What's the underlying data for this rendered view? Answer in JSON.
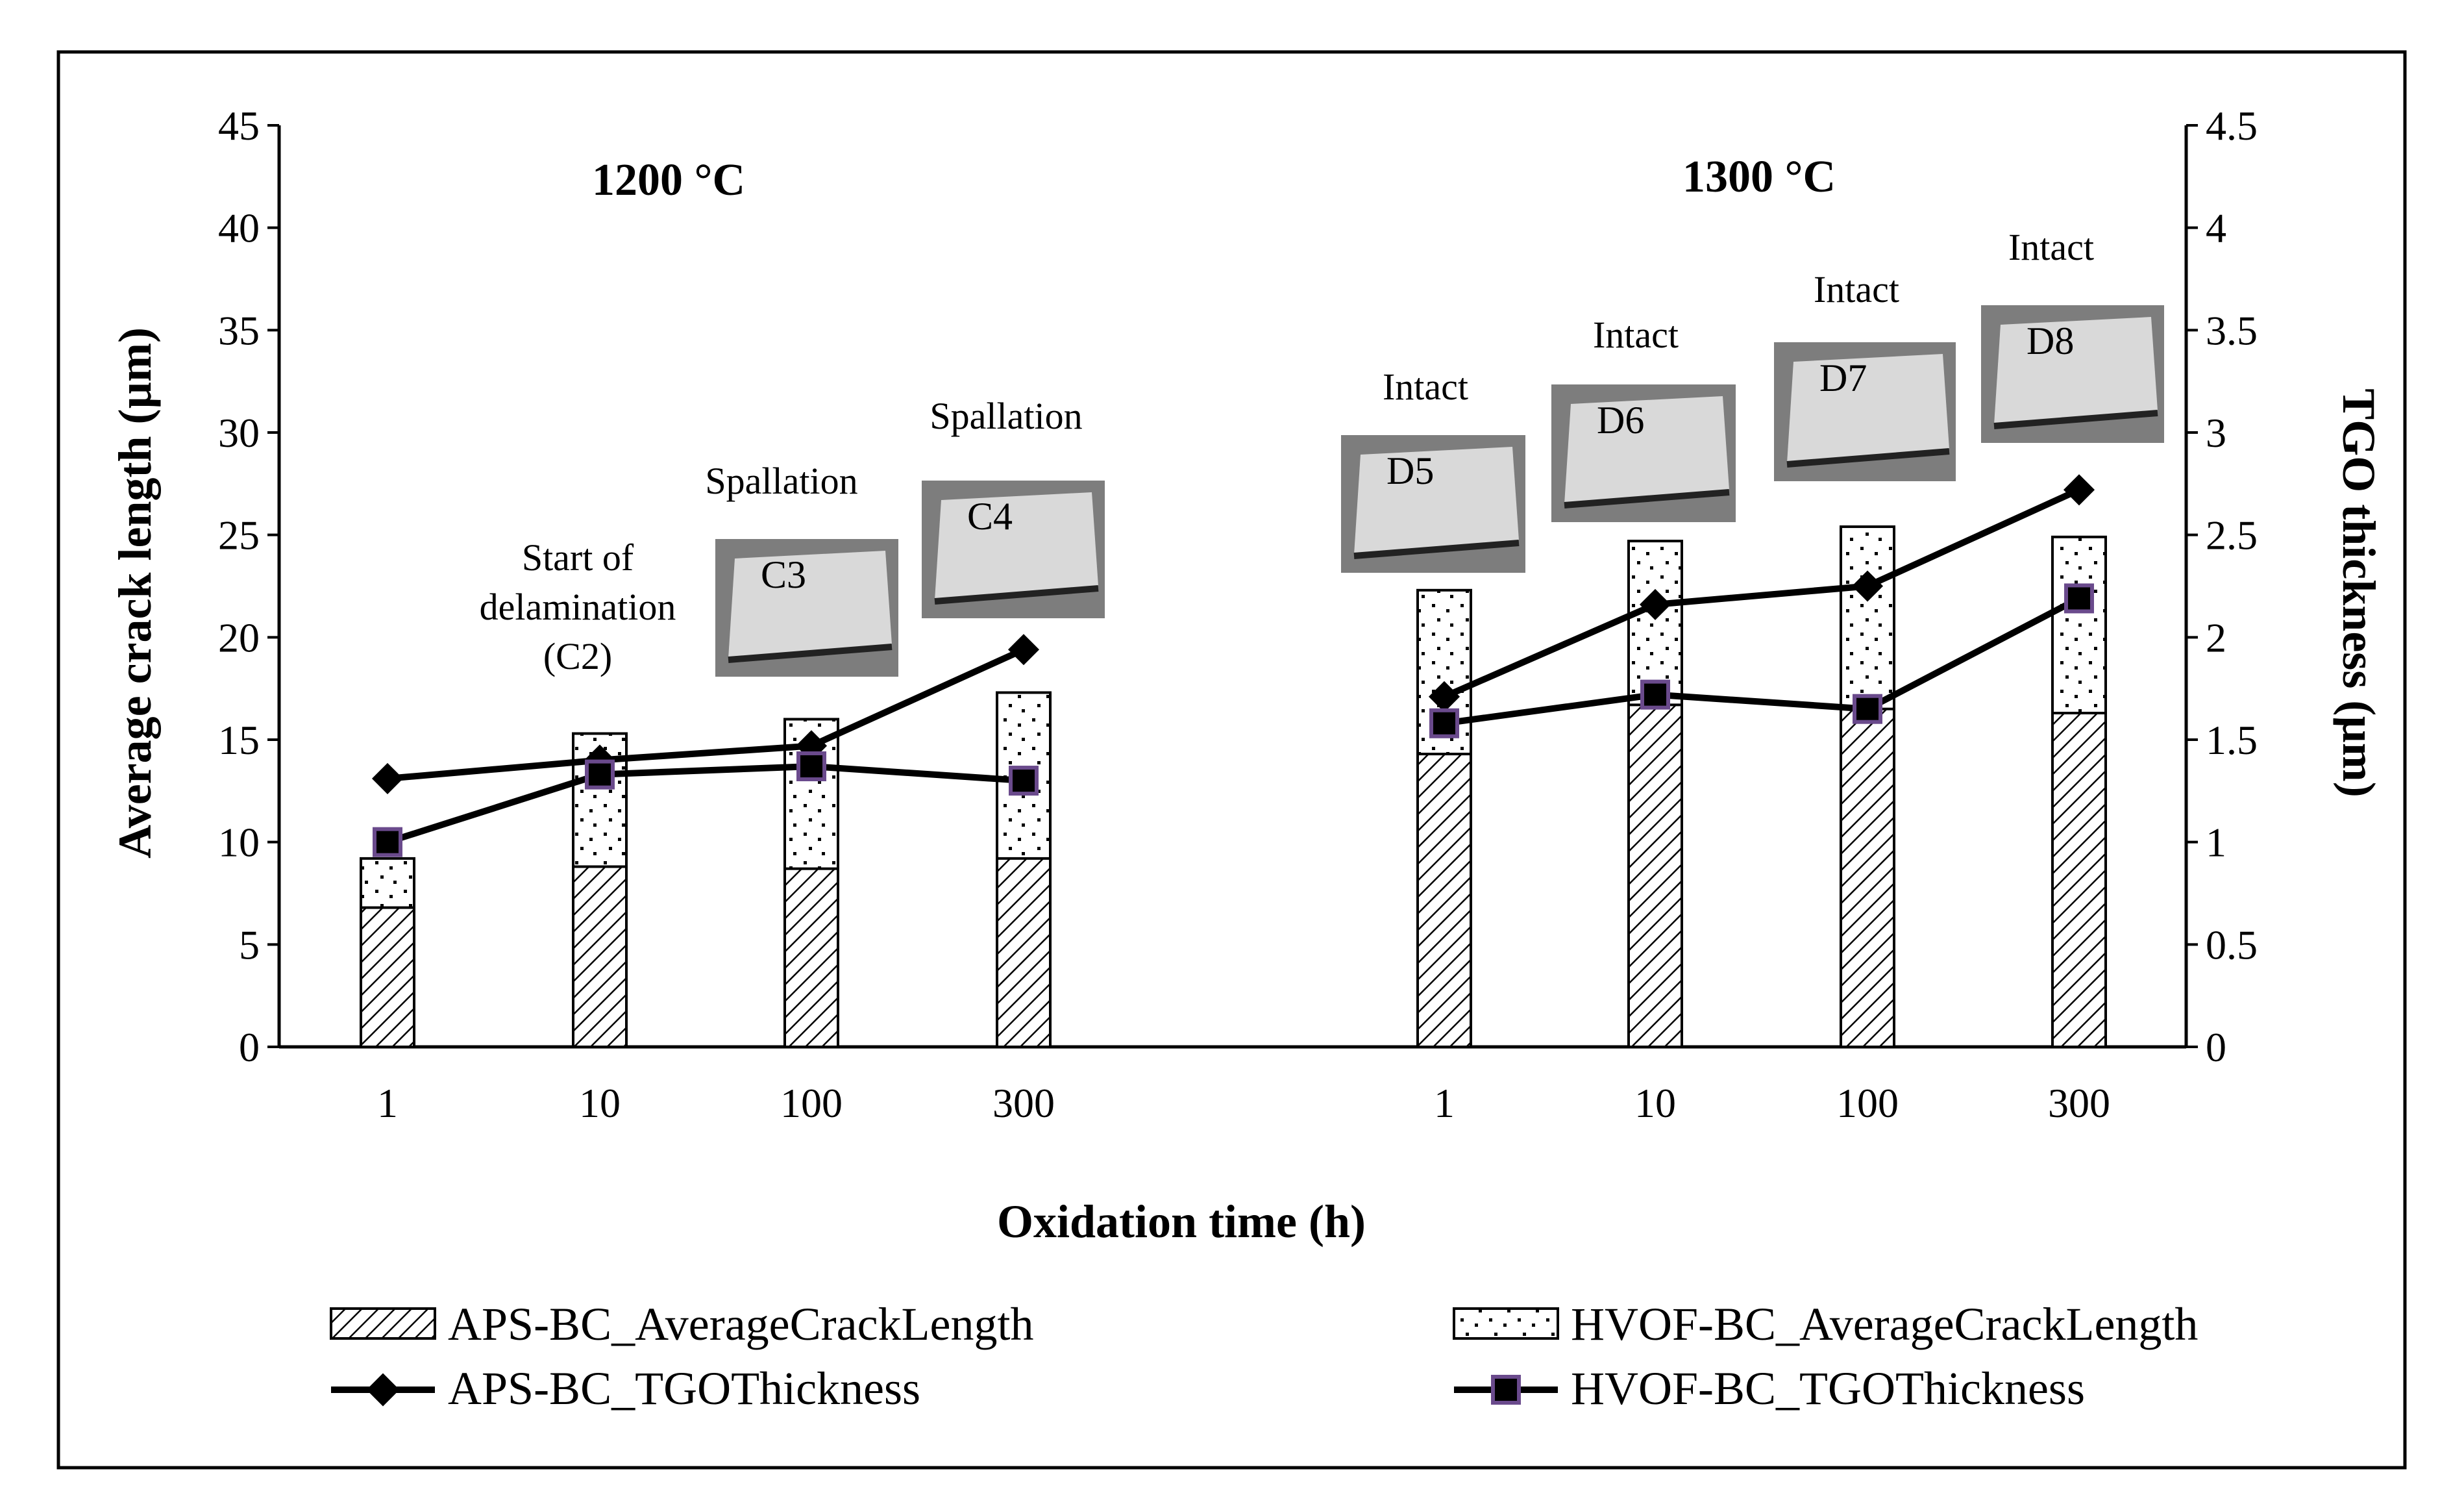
{
  "chart_data": {
    "type": "bar",
    "xlabel": "Oxidation time (h)",
    "ylabel": "Average crack length (µm)",
    "y2label": "TGO thickness (µm)",
    "ylim": [
      0,
      45
    ],
    "y2lim": [
      0,
      4.5
    ],
    "yticks": [
      "0",
      "5",
      "10",
      "15",
      "20",
      "25",
      "30",
      "35",
      "40",
      "45"
    ],
    "y2ticks": [
      "0",
      "0.5",
      "1",
      "1.5",
      "2",
      "2.5",
      "3",
      "3.5",
      "4",
      "4.5"
    ],
    "grid": false,
    "groups": [
      {
        "label": "1200 °C",
        "categories": [
          "1",
          "10",
          "100",
          "300"
        ],
        "aps_crack": [
          6.8,
          8.8,
          8.7,
          9.2
        ],
        "hvof_crack": [
          9.2,
          15.3,
          16.0,
          17.3
        ],
        "aps_tgo": [
          1.31,
          1.4,
          1.47,
          1.94
        ],
        "hvof_tgo": [
          1.0,
          1.33,
          1.37,
          1.3
        ],
        "annotations": [
          "",
          "Start of\ndelamination\n(C2)",
          "Spallation",
          "Spallation"
        ],
        "photo_labels": [
          "",
          "",
          "C3",
          "C4"
        ]
      },
      {
        "label": "1300 °C",
        "categories": [
          "1",
          "10",
          "100",
          "300"
        ],
        "aps_crack": [
          14.3,
          16.7,
          16.5,
          16.3
        ],
        "hvof_crack": [
          22.3,
          24.7,
          25.4,
          24.9
        ],
        "aps_tgo": [
          1.71,
          2.16,
          2.25,
          2.72
        ],
        "hvof_tgo": [
          1.58,
          1.72,
          1.65,
          2.19
        ],
        "annotations": [
          "Intact",
          "Intact",
          "Intact",
          "Intact"
        ],
        "photo_labels": [
          "D5",
          "D6",
          "D7",
          "D8"
        ]
      }
    ],
    "legend": {
      "aps_crack": "APS-BC_AverageCrackLength",
      "hvof_crack": "HVOF-BC_AverageCrackLength",
      "aps_tgo": "APS-BC_TGOThickness",
      "hvof_tgo": "HVOF-BC_TGOThickness"
    },
    "legend_position": "bottom"
  },
  "colors": {
    "line": "#000000",
    "marker_edge": "#6a4a8c",
    "photo_bg": "#7d7d7d",
    "photo_plate": "#d9d9d9"
  }
}
